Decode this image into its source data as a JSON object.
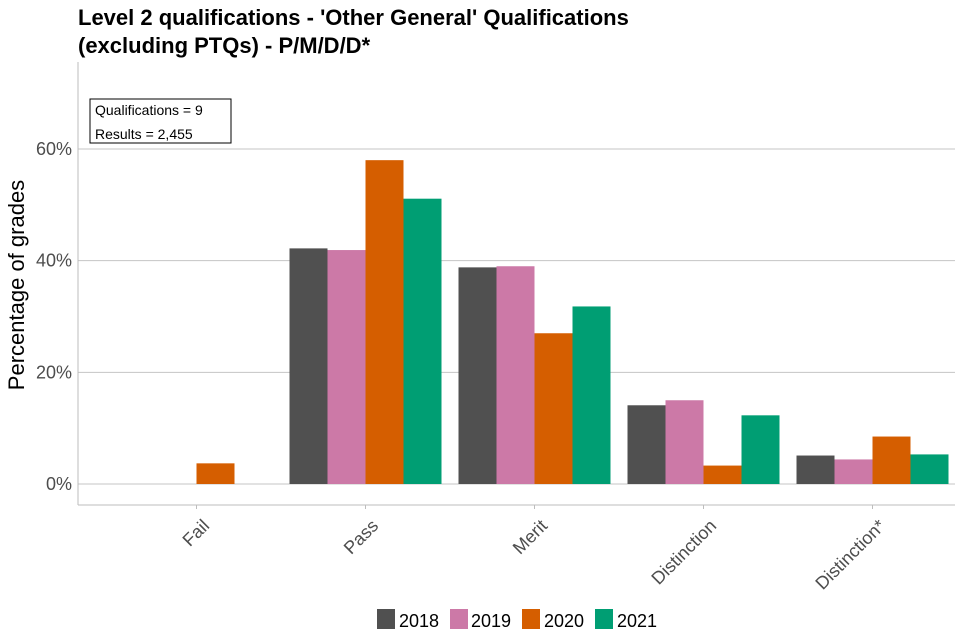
{
  "chart_data": {
    "type": "bar",
    "title_lines": [
      "Level 2 qualifications  - 'Other General' Qualifications",
      "(excluding PTQs) - P/M/D/D*"
    ],
    "ylabel": "Percentage of grades",
    "xlabel": "",
    "categories": [
      "Fail",
      "Pass",
      "Merit",
      "Distinction",
      "Distinction*"
    ],
    "ylim": [
      -4,
      75
    ],
    "yticks": [
      0,
      20,
      40,
      60
    ],
    "ytick_labels": [
      "0%",
      "20%",
      "40%",
      "60%"
    ],
    "grid": true,
    "legend_position": "bottom",
    "series": [
      {
        "name": "2018",
        "color": "#505050",
        "values": [
          0,
          42.2,
          38.8,
          14.1,
          5.1
        ]
      },
      {
        "name": "2019",
        "color": "#cc79a7",
        "values": [
          0,
          41.9,
          39.0,
          15.0,
          4.4
        ]
      },
      {
        "name": "2020",
        "color": "#d55e00",
        "values": [
          3.7,
          58.0,
          27.0,
          3.3,
          8.5
        ]
      },
      {
        "name": "2021",
        "color": "#009e73",
        "values": [
          0,
          51.1,
          31.8,
          12.3,
          5.3
        ]
      }
    ],
    "annotations": [
      "Qualifications = 9",
      "Results = 2,455"
    ]
  }
}
